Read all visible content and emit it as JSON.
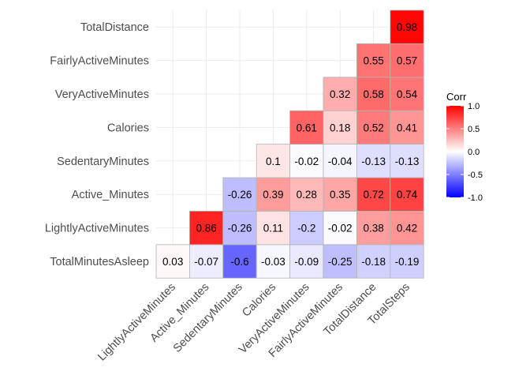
{
  "chart_data": {
    "type": "heatmap",
    "title": "",
    "xlabel": "",
    "ylabel": "",
    "x_categories": [
      "LightlyActiveMinutes",
      "Active_Minutes",
      "SedentaryMinutes",
      "Calories",
      "VeryActiveMinutes",
      "FairlyActiveMinutes",
      "TotalDistance",
      "TotalSteps"
    ],
    "y_categories": [
      "TotalMinutesAsleep",
      "LightlyActiveMinutes",
      "Active_Minutes",
      "SedentaryMinutes",
      "Calories",
      "VeryActiveMinutes",
      "FairlyActiveMinutes",
      "TotalDistance"
    ],
    "cells": [
      {
        "row": 0,
        "col": 0,
        "value": 0.03
      },
      {
        "row": 0,
        "col": 1,
        "value": -0.07
      },
      {
        "row": 0,
        "col": 2,
        "value": -0.6
      },
      {
        "row": 0,
        "col": 3,
        "value": -0.03
      },
      {
        "row": 0,
        "col": 4,
        "value": -0.09
      },
      {
        "row": 0,
        "col": 5,
        "value": -0.25
      },
      {
        "row": 0,
        "col": 6,
        "value": -0.18
      },
      {
        "row": 0,
        "col": 7,
        "value": -0.19
      },
      {
        "row": 1,
        "col": 1,
        "value": 0.86
      },
      {
        "row": 1,
        "col": 2,
        "value": -0.26
      },
      {
        "row": 1,
        "col": 3,
        "value": 0.11
      },
      {
        "row": 1,
        "col": 4,
        "value": -0.2
      },
      {
        "row": 1,
        "col": 5,
        "value": -0.02
      },
      {
        "row": 1,
        "col": 6,
        "value": 0.38
      },
      {
        "row": 1,
        "col": 7,
        "value": 0.42
      },
      {
        "row": 2,
        "col": 2,
        "value": -0.26
      },
      {
        "row": 2,
        "col": 3,
        "value": 0.39
      },
      {
        "row": 2,
        "col": 4,
        "value": 0.28
      },
      {
        "row": 2,
        "col": 5,
        "value": 0.35
      },
      {
        "row": 2,
        "col": 6,
        "value": 0.72
      },
      {
        "row": 2,
        "col": 7,
        "value": 0.74
      },
      {
        "row": 3,
        "col": 3,
        "value": 0.1
      },
      {
        "row": 3,
        "col": 4,
        "value": -0.02
      },
      {
        "row": 3,
        "col": 5,
        "value": -0.04
      },
      {
        "row": 3,
        "col": 6,
        "value": -0.13
      },
      {
        "row": 3,
        "col": 7,
        "value": -0.13
      },
      {
        "row": 4,
        "col": 4,
        "value": 0.61
      },
      {
        "row": 4,
        "col": 5,
        "value": 0.18
      },
      {
        "row": 4,
        "col": 6,
        "value": 0.52
      },
      {
        "row": 4,
        "col": 7,
        "value": 0.41
      },
      {
        "row": 5,
        "col": 5,
        "value": 0.32
      },
      {
        "row": 5,
        "col": 6,
        "value": 0.58
      },
      {
        "row": 5,
        "col": 7,
        "value": 0.54
      },
      {
        "row": 6,
        "col": 6,
        "value": 0.55
      },
      {
        "row": 6,
        "col": 7,
        "value": 0.57
      },
      {
        "row": 7,
        "col": 7,
        "value": 0.98
      }
    ],
    "color_scale": {
      "low": "#0000ff",
      "mid": "#ffffff",
      "high": "#ff0000",
      "range": [
        -1,
        1
      ]
    },
    "legend": {
      "title": "Corr",
      "ticks": [
        1.0,
        0.5,
        0.0,
        -0.5,
        -1.0
      ],
      "tick_labels": [
        "1.0",
        "0.5",
        "0.0",
        "-0.5",
        "-1.0"
      ],
      "position": "right"
    },
    "grid": true,
    "cell_border_color": "#b3b3b3",
    "background_color": "#ffffff"
  }
}
